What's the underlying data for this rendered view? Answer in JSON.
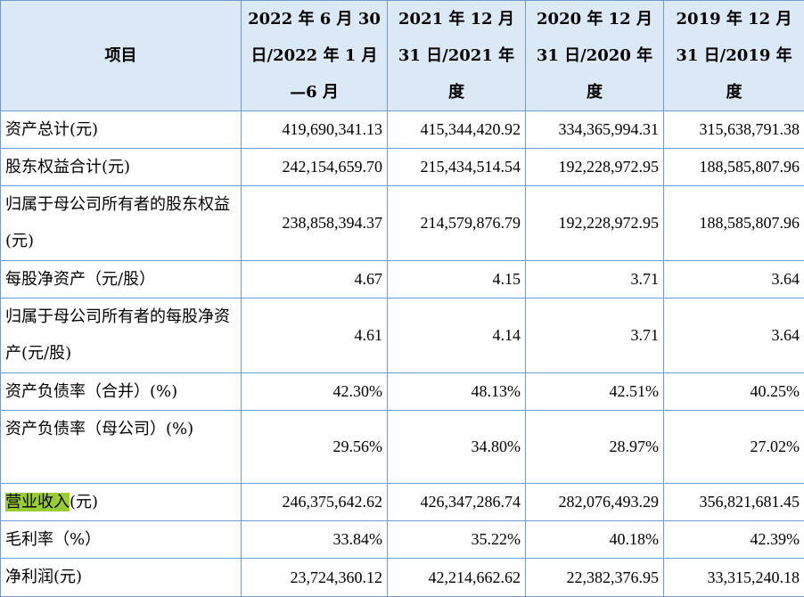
{
  "table": {
    "headers": [
      "项目",
      "2022 年 6 月 30 日/2022 年 1 月—6 月",
      "2021 年 12 月 31 日/2021 年度",
      "2020 年 12 月 31 日/2020 年度",
      "2019 年 12 月 31 日/2019 年度"
    ],
    "rows": [
      {
        "label": "资产总计(元)",
        "values": [
          "419,690,341.13",
          "415,344,420.92",
          "334,365,994.31",
          "315,638,791.38"
        ]
      },
      {
        "label": "股东权益合计(元)",
        "values": [
          "242,154,659.70",
          "215,434,514.54",
          "192,228,972.95",
          "188,585,807.96"
        ]
      },
      {
        "label": "归属于母公司所有者的股东权益(元)",
        "values": [
          "238,858,394.37",
          "214,579,876.79",
          "192,228,972.95",
          "188,585,807.96"
        ]
      },
      {
        "label": "每股净资产（元/股）",
        "values": [
          "4.67",
          "4.15",
          "3.71",
          "3.64"
        ]
      },
      {
        "label": "归属于母公司所有者的每股净资产(元/股)",
        "values": [
          "4.61",
          "4.14",
          "3.71",
          "3.64"
        ]
      },
      {
        "label": "资产负债率（合并）(%)",
        "values": [
          "42.30%",
          "48.13%",
          "42.51%",
          "40.25%"
        ]
      },
      {
        "label": "资产负债率（母公司）(%)",
        "values": [
          "29.56%",
          "34.80%",
          "28.97%",
          "27.02%"
        ]
      },
      {
        "label_highlight": "营业收入",
        "label_rest": "(元)",
        "values": [
          "246,375,642.62",
          "426,347,286.74",
          "282,076,493.29",
          "356,821,681.45"
        ]
      },
      {
        "label": "毛利率（%）",
        "values": [
          "33.84%",
          "35.22%",
          "40.18%",
          "42.39%"
        ]
      },
      {
        "label": "净利润(元)",
        "values": [
          "23,724,360.12",
          "42,214,662.62",
          "22,382,376.95",
          "33,315,240.18"
        ]
      }
    ]
  },
  "colors": {
    "border": "#6b9bd1",
    "header_bg": "#dbe8f6",
    "highlight": "#9acd32"
  }
}
